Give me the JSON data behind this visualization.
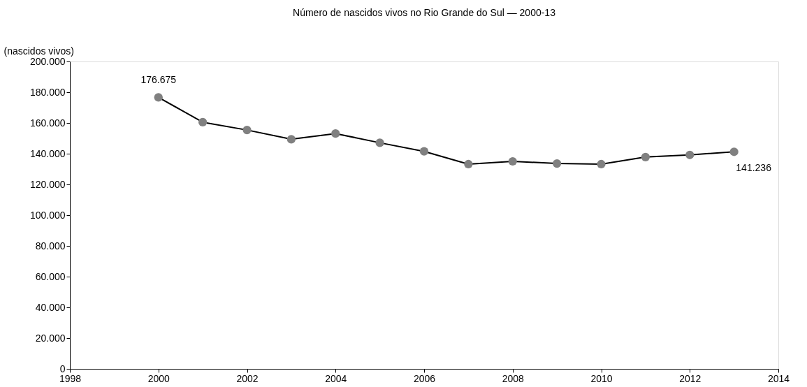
{
  "chart_data": {
    "type": "line",
    "title": "Número de nascidos vivos no Rio Grande do Sul — 2000-13",
    "ylabel": "(nascidos vivos)",
    "x": [
      2000,
      2001,
      2002,
      2003,
      2004,
      2005,
      2006,
      2007,
      2008,
      2009,
      2010,
      2011,
      2012,
      2013
    ],
    "series": [
      {
        "color": "#000000",
        "values": [
          176675,
          160500,
          155400,
          149400,
          153100,
          147100,
          141500,
          133200,
          135000,
          133600,
          133200,
          137800,
          139200,
          141236
        ],
        "value_labels": [
          "176.675",
          null,
          null,
          null,
          null,
          null,
          null,
          null,
          null,
          null,
          null,
          null,
          null,
          "141.236"
        ]
      }
    ],
    "marker": "circle",
    "grid": false,
    "xlim": [
      1998,
      2014
    ],
    "xticks": [
      1998,
      2000,
      2002,
      2004,
      2006,
      2008,
      2010,
      2012,
      2014
    ],
    "ylim": [
      0,
      200000
    ],
    "yticks": [
      0,
      {
        "value": 20000,
        "label": "20.000"
      },
      {
        "value": 40000,
        "label": "40.000"
      },
      {
        "value": 60000,
        "label": "60.000"
      },
      {
        "value": 80000,
        "label": "80.000"
      },
      {
        "value": 100000,
        "label": "100.000"
      },
      {
        "value": 120000,
        "label": "120.000"
      },
      {
        "value": 140000,
        "label": "140.000"
      },
      {
        "value": 160000,
        "label": "160.000"
      },
      {
        "value": 180000,
        "label": "180.000"
      },
      {
        "value": 200000,
        "label": "200.000"
      }
    ]
  }
}
